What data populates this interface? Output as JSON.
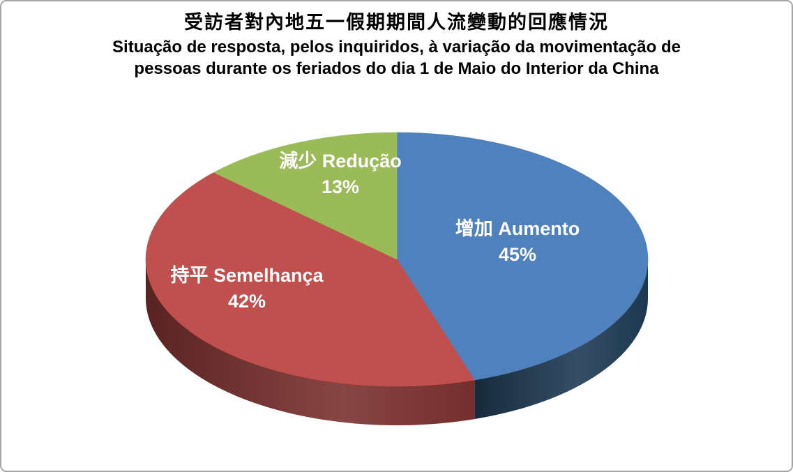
{
  "frame": {
    "background": "#FFFFFF",
    "border_color": "#A6A6A6"
  },
  "title": {
    "zh": "受訪者對內地五一假期期間人流變動的回應情況",
    "pt_line1": "Situação de resposta, pelos inquiridos, à variação da movimentação de",
    "pt_line2": "pessoas durante os feriados do dia 1 de Maio do Interior da China"
  },
  "chart_data": {
    "type": "pie",
    "style": "3d",
    "start_angle": "12-oclock",
    "direction": "clockwise",
    "unit": "%",
    "title_zh": "受訪者對內地五一假期期間人流變動的回應情況",
    "title_pt": "Situação de resposta, pelos inquiridos, à variação da movimentação de pessoas durante os feriados do dia 1 de Maio do Interior da China",
    "legend": "none",
    "label_color": "#FFFFFF",
    "slices": [
      {
        "key": "aumento",
        "label": "增加 Aumento",
        "pct_label": "45%",
        "value": 45,
        "color": "#4F81BD",
        "side_color": "#1F3A54"
      },
      {
        "key": "semelhanca",
        "label": "持平 Semelhança",
        "pct_label": "42%",
        "value": 42,
        "color": "#C0504D",
        "side_color": "#7B302E"
      },
      {
        "key": "reducao",
        "label": "減少 Redução",
        "pct_label": "13%",
        "value": 13,
        "color": "#9BBB59",
        "side_color": "#5E7634"
      }
    ]
  }
}
